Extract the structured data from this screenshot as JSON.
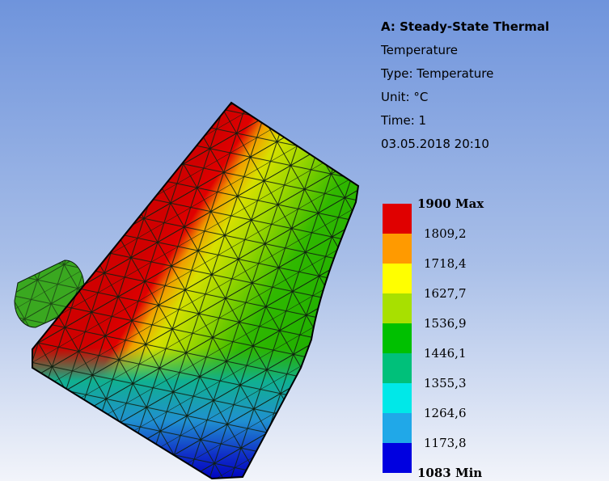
{
  "header": {
    "title": "A: Steady-State Thermal",
    "lines": [
      "Temperature",
      "Type: Temperature",
      "Unit: °C",
      "Time: 1",
      "03.05.2018 20:10"
    ]
  },
  "legend": {
    "labels": [
      "1900 Max",
      "1809,2",
      "1718,4",
      "1627,7",
      "1536,9",
      "1446,1",
      "1355,3",
      "1264,6",
      "1173,8",
      "1083 Min"
    ],
    "colors": [
      "#e00000",
      "#ff9a00",
      "#ffff00",
      "#a8e000",
      "#00c000",
      "#00c07a",
      "#00e8e8",
      "#20a8e8",
      "#0000e0"
    ]
  }
}
